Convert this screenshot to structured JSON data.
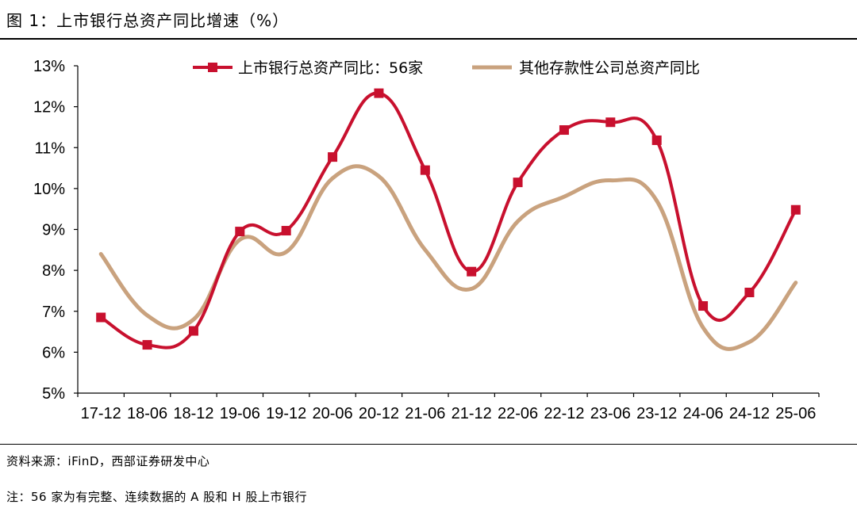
{
  "figure": {
    "title": "图 1：上市银行总资产同比增速（%）",
    "source": "资料来源：iFinD，西部证券研发中心",
    "note": "注：56 家为有完整、连续数据的 A 股和 H 股上市银行"
  },
  "colors": {
    "series_bank": "#c8102e",
    "series_other": "#c9a27e",
    "axis": "#000000"
  },
  "chart_data": {
    "type": "line",
    "title": "",
    "xlabel": "",
    "ylabel": "",
    "ylim": [
      5,
      13
    ],
    "yticks": [
      5,
      6,
      7,
      8,
      9,
      10,
      11,
      12,
      13
    ],
    "ytick_labels": [
      "5%",
      "6%",
      "7%",
      "8%",
      "9%",
      "10%",
      "11%",
      "12%",
      "13%"
    ],
    "categories": [
      "17-12",
      "18-06",
      "18-12",
      "19-06",
      "19-12",
      "20-06",
      "20-12",
      "21-06",
      "21-12",
      "22-06",
      "22-12",
      "23-06",
      "23-12",
      "24-06",
      "24-12",
      "25-06"
    ],
    "grid": false,
    "legend_position": "top",
    "series": [
      {
        "name": "上市银行总资产同比：56家",
        "marker": "square",
        "smooth": true,
        "values": [
          6.85,
          6.18,
          6.52,
          8.95,
          8.97,
          10.77,
          12.33,
          10.45,
          7.97,
          10.15,
          11.43,
          11.62,
          11.18,
          7.13,
          7.46,
          9.48
        ]
      },
      {
        "name": "其他存款性公司总资产同比",
        "marker": "none",
        "smooth": true,
        "values": [
          8.4,
          6.9,
          6.8,
          8.75,
          8.45,
          10.25,
          10.3,
          8.5,
          7.55,
          9.2,
          9.8,
          10.2,
          9.7,
          6.6,
          6.25,
          7.7
        ]
      }
    ]
  }
}
